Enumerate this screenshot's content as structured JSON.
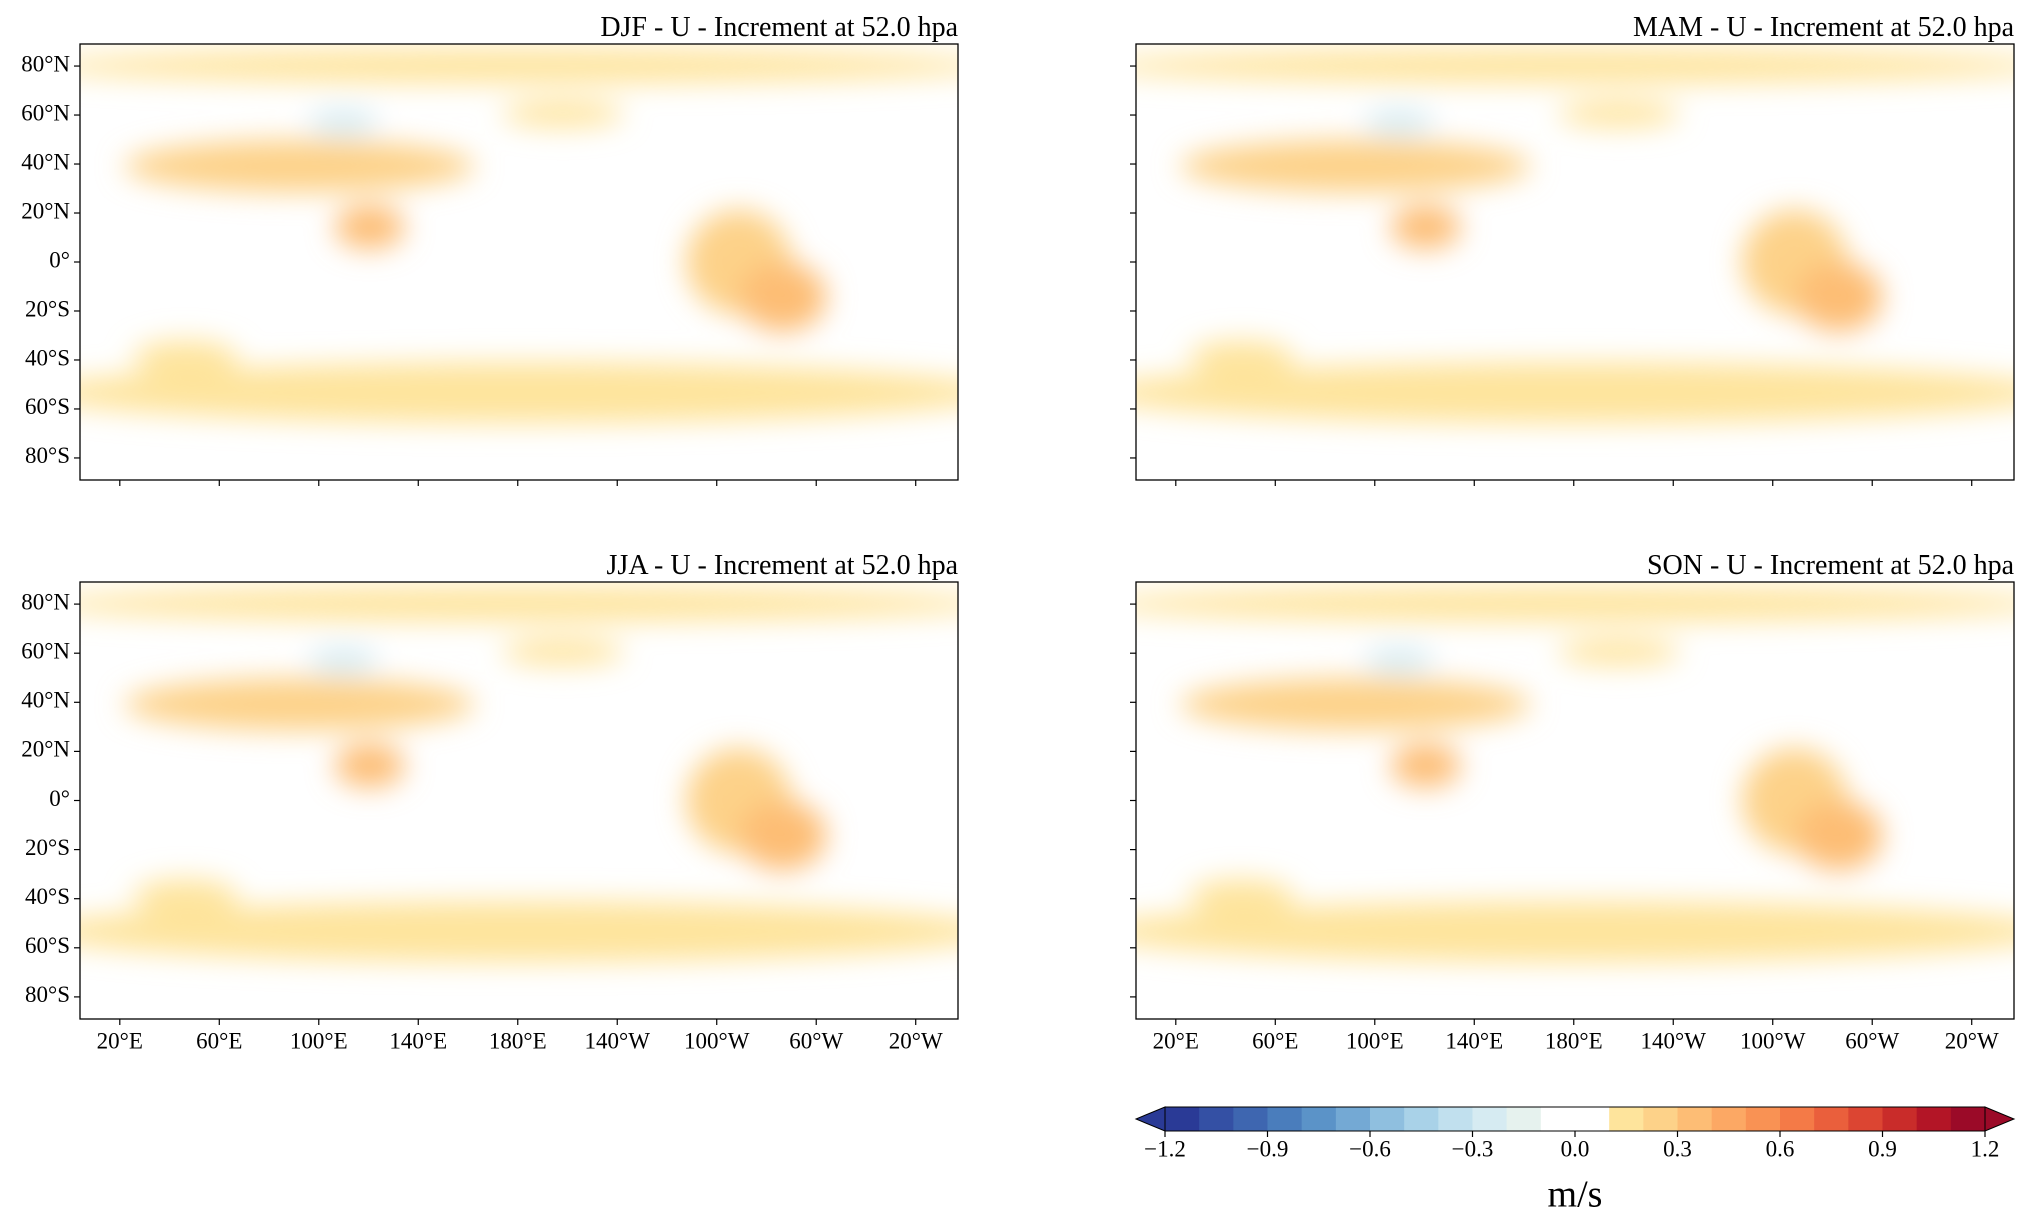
{
  "panels": [
    {
      "title": "DJF - U - Increment at 52.0 hpa"
    },
    {
      "title": "MAM - U - Increment at 52.0 hpa"
    },
    {
      "title": "JJA - U - Increment at 52.0 hpa"
    },
    {
      "title": "SON - U - Increment at 52.0 hpa"
    }
  ],
  "xlim": [
    4,
    357
  ],
  "ylim": [
    -89,
    89
  ],
  "lat_ticks": [
    {
      "value": 80,
      "label": "80°N"
    },
    {
      "value": 60,
      "label": "60°N"
    },
    {
      "value": 40,
      "label": "40°N"
    },
    {
      "value": 20,
      "label": "20°N"
    },
    {
      "value": 0,
      "label": "0°"
    },
    {
      "value": -20,
      "label": "20°S"
    },
    {
      "value": -40,
      "label": "40°S"
    },
    {
      "value": -60,
      "label": "60°S"
    },
    {
      "value": -80,
      "label": "80°S"
    }
  ],
  "lon_ticks": [
    {
      "value": 20,
      "label": "20°E"
    },
    {
      "value": 60,
      "label": "60°E"
    },
    {
      "value": 100,
      "label": "100°E"
    },
    {
      "value": 140,
      "label": "140°E"
    },
    {
      "value": 180,
      "label": "180°E"
    },
    {
      "value": 220,
      "label": "140°W"
    },
    {
      "value": 260,
      "label": "100°W"
    },
    {
      "value": 300,
      "label": "60°W"
    },
    {
      "value": 340,
      "label": "20°W"
    }
  ],
  "colorbar": {
    "label": "m/s",
    "extend": "both",
    "levels": [
      -1.2,
      -1.1,
      -1.0,
      -0.9,
      -0.8,
      -0.7,
      -0.6,
      -0.5,
      -0.4,
      -0.3,
      -0.2,
      -0.1,
      0,
      0.1,
      0.2,
      0.3,
      0.4,
      0.5,
      0.6,
      0.7,
      0.8,
      0.9,
      1.0,
      1.1,
      1.2
    ],
    "colors": [
      "#2a3a96",
      "#3450a4",
      "#3e66b0",
      "#4a7dbc",
      "#5b93c8",
      "#74a9d4",
      "#8fbfdf",
      "#a9d2e8",
      "#c1e0ee",
      "#d6ebf2",
      "#e6f2ee",
      "#ffffff",
      "#ffffff",
      "#fee49c",
      "#fdd289",
      "#fdbd75",
      "#fca864",
      "#f99254",
      "#f47a47",
      "#ea5f3c",
      "#dc4532",
      "#c92c2a",
      "#b31526",
      "#9b0a28"
    ],
    "ticks": [
      {
        "value": -1.2,
        "label": "−1.2"
      },
      {
        "value": -0.9,
        "label": "−0.9"
      },
      {
        "value": -0.6,
        "label": "−0.6"
      },
      {
        "value": -0.3,
        "label": "−0.3"
      },
      {
        "value": 0,
        "label": "0.0"
      },
      0.3,
      0.6,
      0.9,
      1.2
    ]
  }
}
